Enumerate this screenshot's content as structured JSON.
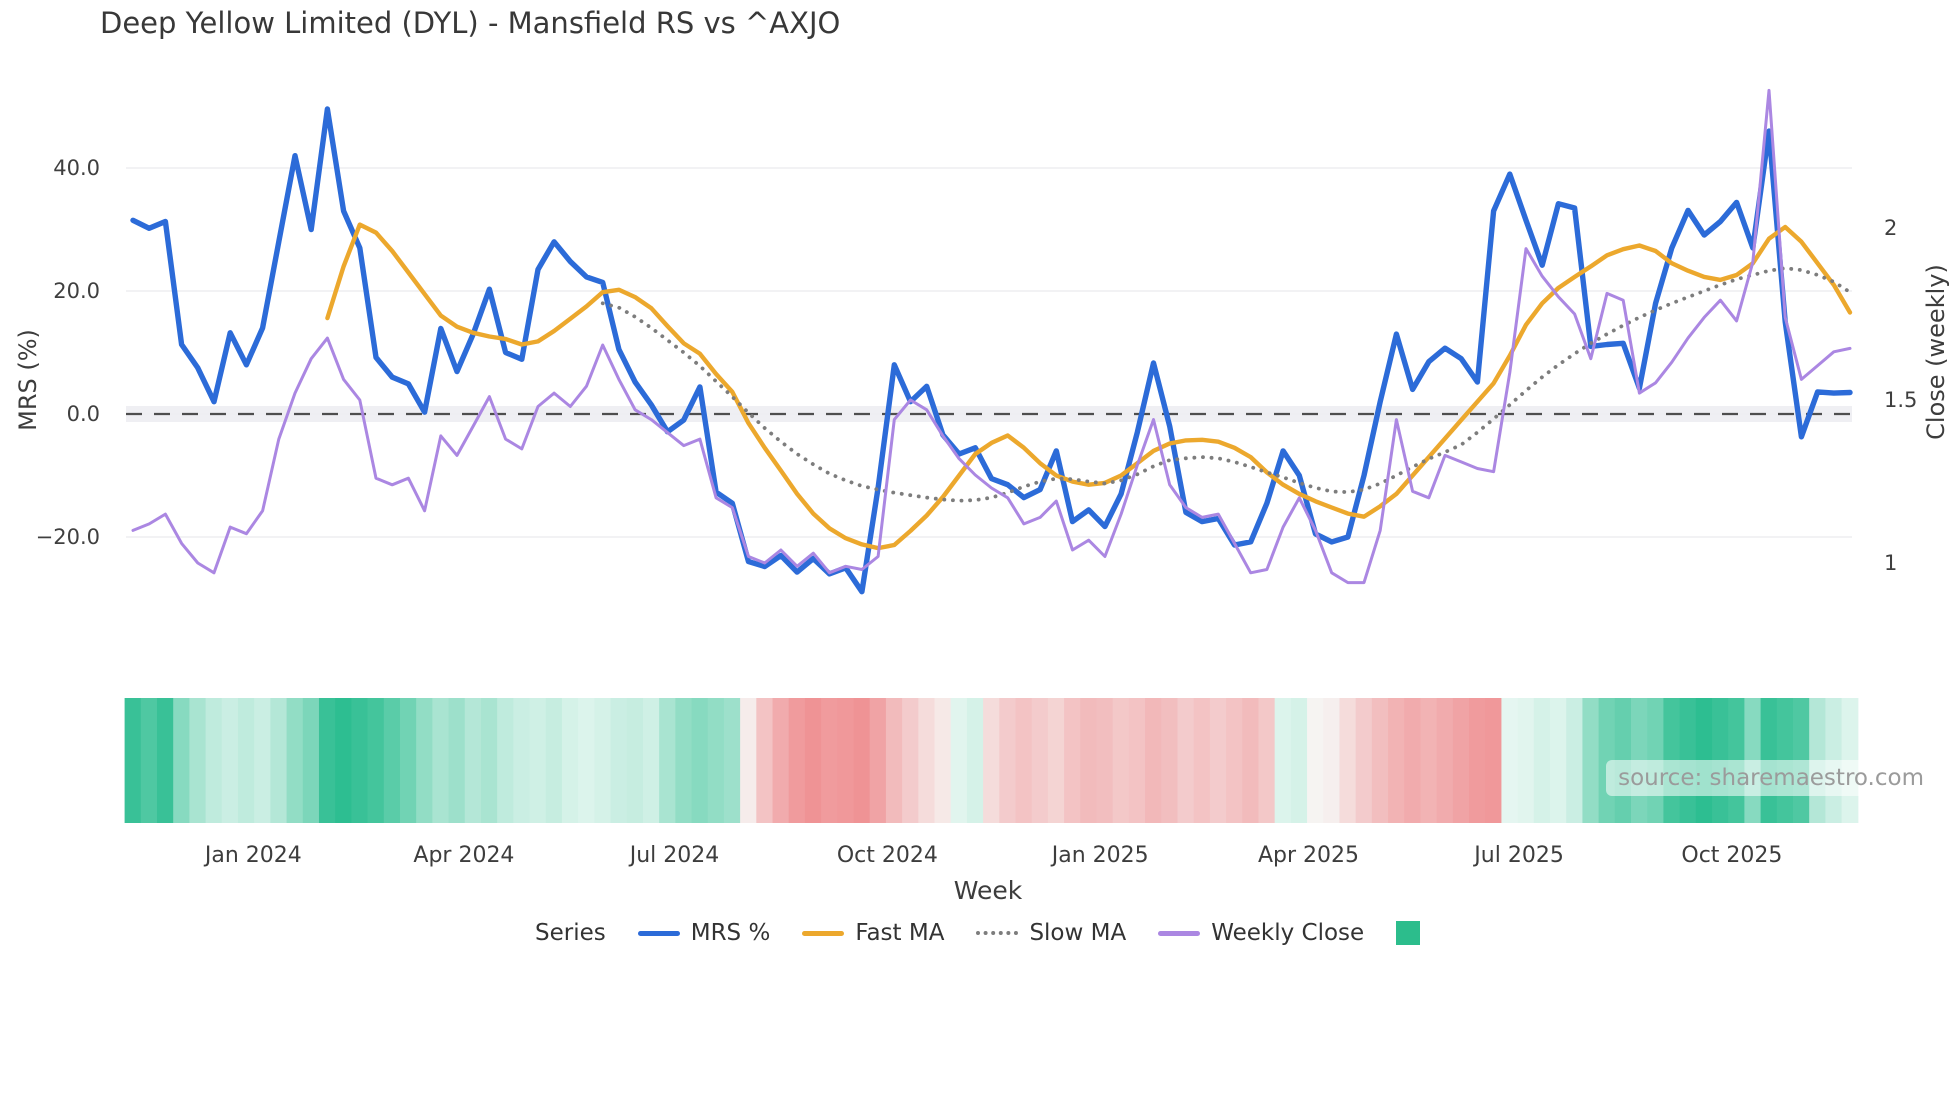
{
  "title": "Deep Yellow Limited (DYL) - Mansfield RS vs ^AXJO",
  "source_note": "source: sharemaestro.com",
  "axes": {
    "left": {
      "title": "MRS (%)",
      "ticks": [
        {
          "label": "40.0",
          "value": 40
        },
        {
          "label": "20.0",
          "value": 20
        },
        {
          "label": "0.0",
          "value": 0
        },
        {
          "label": "−20.0",
          "value": -20
        }
      ]
    },
    "right": {
      "title": "Close (weekly)",
      "ticks": [
        {
          "label": "2",
          "value": 2
        },
        {
          "label": "1.5",
          "value": 1.5
        },
        {
          "label": "1",
          "value": 1
        }
      ]
    },
    "x": {
      "title": "Week",
      "ticks": [
        {
          "label": "Jan 2024",
          "week": 7.43
        },
        {
          "label": "Apr 2024",
          "week": 20.43
        },
        {
          "label": "Jul 2024",
          "week": 33.43
        },
        {
          "label": "Oct 2024",
          "week": 46.57
        },
        {
          "label": "Jan 2025",
          "week": 59.71
        },
        {
          "label": "Apr 2025",
          "week": 72.57
        },
        {
          "label": "Jul 2025",
          "week": 85.57
        },
        {
          "label": "Oct 2025",
          "week": 98.71
        }
      ]
    }
  },
  "legend": {
    "title": "Series",
    "items": [
      {
        "label": "MRS %",
        "type": "line",
        "color": "#2c6bd8"
      },
      {
        "label": "Fast MA",
        "type": "line",
        "color": "#eca82d"
      },
      {
        "label": "Slow MA",
        "type": "dotted",
        "color": "#7d7d7d"
      },
      {
        "label": "Weekly Close",
        "type": "line",
        "color": "#ab87e2"
      },
      {
        "label": "",
        "type": "square",
        "color": "#2cbd8c"
      }
    ]
  },
  "chart_data": {
    "type": "line",
    "title": "Deep Yellow Limited (DYL) - Mansfield RS vs ^AXJO",
    "xlabel": "Week",
    "ylabel_left": "MRS (%)",
    "ylabel_right": "Close (weekly)",
    "ylim_left": [
      -31,
      56
    ],
    "ylim_right": [
      0.92,
      2.45
    ],
    "grid": true,
    "zero_line": true,
    "legend_position": "bottom",
    "x": [
      "2023-11-10",
      "2023-11-17",
      "2023-11-24",
      "2023-12-01",
      "2023-12-08",
      "2023-12-15",
      "2023-12-22",
      "2023-12-29",
      "2024-01-05",
      "2024-01-12",
      "2024-01-19",
      "2024-01-26",
      "2024-02-02",
      "2024-02-09",
      "2024-02-16",
      "2024-02-23",
      "2024-03-01",
      "2024-03-08",
      "2024-03-15",
      "2024-03-22",
      "2024-03-29",
      "2024-04-05",
      "2024-04-12",
      "2024-04-19",
      "2024-04-26",
      "2024-05-03",
      "2024-05-10",
      "2024-05-17",
      "2024-05-24",
      "2024-05-31",
      "2024-06-07",
      "2024-06-14",
      "2024-06-21",
      "2024-06-28",
      "2024-07-05",
      "2024-07-12",
      "2024-07-19",
      "2024-07-26",
      "2024-08-02",
      "2024-08-09",
      "2024-08-16",
      "2024-08-23",
      "2024-08-30",
      "2024-09-06",
      "2024-09-13",
      "2024-09-20",
      "2024-09-27",
      "2024-10-04",
      "2024-10-11",
      "2024-10-18",
      "2024-10-25",
      "2024-11-01",
      "2024-11-08",
      "2024-11-15",
      "2024-11-22",
      "2024-11-29",
      "2024-12-06",
      "2024-12-13",
      "2024-12-20",
      "2024-12-27",
      "2025-01-03",
      "2025-01-10",
      "2025-01-17",
      "2025-01-24",
      "2025-01-31",
      "2025-02-07",
      "2025-02-14",
      "2025-02-21",
      "2025-02-28",
      "2025-03-07",
      "2025-03-14",
      "2025-03-21",
      "2025-03-28",
      "2025-04-04",
      "2025-04-11",
      "2025-04-18",
      "2025-04-25",
      "2025-05-02",
      "2025-05-09",
      "2025-05-16",
      "2025-05-23",
      "2025-05-30",
      "2025-06-06",
      "2025-06-13",
      "2025-06-20",
      "2025-06-27",
      "2025-07-04",
      "2025-07-11",
      "2025-07-18",
      "2025-07-25",
      "2025-08-01",
      "2025-08-08",
      "2025-08-15",
      "2025-08-22",
      "2025-08-29",
      "2025-09-05",
      "2025-09-12",
      "2025-09-19",
      "2025-09-26",
      "2025-10-03",
      "2025-10-10",
      "2025-10-17",
      "2025-10-24",
      "2025-10-31",
      "2025-11-07",
      "2025-11-14",
      "2025-11-21"
    ],
    "series": [
      {
        "name": "MRS %",
        "axis": "left",
        "style": "solid",
        "color": "#2c6bd8",
        "width": 5.4,
        "values": [
          31.5,
          30.2,
          31.3,
          11.3,
          7.5,
          2.0,
          13.2,
          8.0,
          14.0,
          28.0,
          42.0,
          30.0,
          49.6,
          33.0,
          27.0,
          9.2,
          6.0,
          4.9,
          0.3,
          13.9,
          6.9,
          13.0,
          20.3,
          10.0,
          8.9,
          23.5,
          28.0,
          24.8,
          22.3,
          21.4,
          10.5,
          5.2,
          1.5,
          -2.9,
          -1.0,
          4.4,
          -12.7,
          -14.5,
          -24.0,
          -24.8,
          -23.0,
          -25.7,
          -23.5,
          -26.0,
          -25.0,
          -28.9,
          -12.0,
          8.0,
          2.0,
          4.5,
          -3.4,
          -6.5,
          -5.5,
          -10.5,
          -11.5,
          -13.6,
          -12.3,
          -6.0,
          -17.5,
          -15.6,
          -18.3,
          -13.0,
          -3.0,
          8.3,
          -2.0,
          -16.0,
          -17.5,
          -17.0,
          -21.3,
          -20.8,
          -14.5,
          -6.0,
          -10.0,
          -19.5,
          -20.8,
          -20.0,
          -10.0,
          2.0,
          13.0,
          4.0,
          8.5,
          10.7,
          9.0,
          5.2,
          33.0,
          39.0,
          31.5,
          24.2,
          34.2,
          33.5,
          11.0,
          11.3,
          11.5,
          4.2,
          18.0,
          27.0,
          33.1,
          29.1,
          31.3,
          34.4,
          27.0,
          46.0,
          15.0,
          -3.7,
          3.6,
          3.4,
          3.5
        ]
      },
      {
        "name": "Fast MA",
        "axis": "left",
        "style": "solid",
        "color": "#eca82d",
        "width": 4.4,
        "values": [
          null,
          null,
          null,
          null,
          null,
          null,
          null,
          null,
          null,
          null,
          null,
          null,
          15.6,
          24.0,
          30.8,
          29.5,
          26.5,
          23.0,
          19.5,
          16.0,
          14.2,
          13.2,
          12.6,
          12.2,
          11.3,
          11.8,
          13.5,
          15.5,
          17.5,
          19.8,
          20.2,
          19.0,
          17.2,
          14.3,
          11.5,
          9.8,
          6.5,
          3.6,
          -1.5,
          -5.5,
          -9.2,
          -13.0,
          -16.2,
          -18.6,
          -20.2,
          -21.2,
          -21.8,
          -21.3,
          -19.0,
          -16.5,
          -13.5,
          -10.0,
          -6.5,
          -4.7,
          -3.5,
          -5.5,
          -8.0,
          -10.0,
          -11.0,
          -11.5,
          -11.2,
          -10.0,
          -8.0,
          -6.0,
          -4.8,
          -4.3,
          -4.2,
          -4.5,
          -5.5,
          -7.0,
          -9.5,
          -11.5,
          -13.0,
          -14.2,
          -15.2,
          -16.2,
          -16.7,
          -15.0,
          -13.0,
          -10.0,
          -7.0,
          -4.0,
          -1.0,
          2.0,
          5.0,
          9.5,
          14.5,
          18.0,
          20.5,
          22.3,
          24.0,
          25.8,
          26.8,
          27.4,
          26.5,
          24.5,
          23.3,
          22.3,
          21.8,
          22.6,
          24.5,
          28.5,
          30.4,
          28.0,
          24.5,
          21.0,
          16.5
        ]
      },
      {
        "name": "Slow MA",
        "axis": "left",
        "style": "dotted",
        "color": "#7d7d7d",
        "width": 3.8,
        "values": [
          null,
          null,
          null,
          null,
          null,
          null,
          null,
          null,
          null,
          null,
          null,
          null,
          null,
          null,
          null,
          null,
          null,
          null,
          null,
          null,
          null,
          null,
          null,
          null,
          null,
          null,
          null,
          null,
          null,
          18.0,
          17.3,
          15.8,
          14.0,
          12.0,
          10.0,
          7.8,
          5.3,
          2.8,
          0.2,
          -2.3,
          -4.5,
          -6.5,
          -8.2,
          -9.7,
          -10.8,
          -11.7,
          -12.3,
          -12.8,
          -13.2,
          -13.6,
          -13.9,
          -14.1,
          -14.0,
          -13.6,
          -12.8,
          -11.8,
          -11.0,
          -10.5,
          -10.6,
          -11.0,
          -11.3,
          -10.8,
          -9.8,
          -8.5,
          -7.5,
          -7.2,
          -7.0,
          -7.2,
          -7.8,
          -8.6,
          -9.5,
          -10.3,
          -11.2,
          -12.0,
          -12.6,
          -12.7,
          -12.3,
          -11.3,
          -10.0,
          -8.6,
          -7.3,
          -6.2,
          -5.0,
          -3.0,
          -0.8,
          1.5,
          3.8,
          6.0,
          8.0,
          9.8,
          11.5,
          13.0,
          14.4,
          15.7,
          16.9,
          18.0,
          19.0,
          20.0,
          21.0,
          21.9,
          22.6,
          23.3,
          23.7,
          23.4,
          22.6,
          21.5,
          19.8
        ]
      },
      {
        "name": "Weekly Close",
        "axis": "right",
        "style": "solid",
        "color": "#ab87e2",
        "width": 3.0,
        "values": [
          1.1,
          1.12,
          1.15,
          1.06,
          1.0,
          0.97,
          1.11,
          1.09,
          1.16,
          1.38,
          1.52,
          1.62,
          1.68,
          1.56,
          1.5,
          1.26,
          1.24,
          1.26,
          1.16,
          1.39,
          1.33,
          1.42,
          1.51,
          1.38,
          1.35,
          1.48,
          1.52,
          1.48,
          1.54,
          1.66,
          1.56,
          1.47,
          1.44,
          1.4,
          1.36,
          1.38,
          1.2,
          1.17,
          1.02,
          1.0,
          1.04,
          0.99,
          1.03,
          0.97,
          0.99,
          0.98,
          1.02,
          1.44,
          1.5,
          1.47,
          1.39,
          1.32,
          1.27,
          1.23,
          1.2,
          1.12,
          1.14,
          1.19,
          1.04,
          1.07,
          1.02,
          1.15,
          1.3,
          1.44,
          1.24,
          1.17,
          1.14,
          1.15,
          1.06,
          0.97,
          0.98,
          1.11,
          1.2,
          1.1,
          0.97,
          0.94,
          0.94,
          1.1,
          1.44,
          1.22,
          1.2,
          1.33,
          1.31,
          1.29,
          1.28,
          1.58,
          1.94,
          1.86,
          1.8,
          1.75,
          1.62,
          1.81,
          1.79,
          1.52,
          1.55,
          1.61,
          1.68,
          1.74,
          1.79,
          1.73,
          1.9,
          2.4,
          1.74,
          1.56,
          1.6,
          1.64,
          1.65
        ]
      }
    ],
    "heatmap": {
      "description": "weekly sentiment strip under chart, green=positive red=negative",
      "color_positive": "#17b785",
      "color_negative": "#eb5a5f",
      "color_neutral": "#f7fcfa",
      "values": [
        0.85,
        0.75,
        0.85,
        0.5,
        0.35,
        0.25,
        0.2,
        0.25,
        0.2,
        0.3,
        0.45,
        0.55,
        0.85,
        0.9,
        0.85,
        0.8,
        0.7,
        0.6,
        0.45,
        0.35,
        0.4,
        0.3,
        0.35,
        0.25,
        0.2,
        0.18,
        0.22,
        0.15,
        0.12,
        0.15,
        0.2,
        0.22,
        0.18,
        0.35,
        0.45,
        0.5,
        0.45,
        0.4,
        -0.1,
        -0.35,
        -0.5,
        -0.6,
        -0.65,
        -0.6,
        -0.62,
        -0.65,
        -0.55,
        -0.4,
        -0.3,
        -0.2,
        -0.12,
        0.1,
        0.15,
        -0.2,
        -0.3,
        -0.35,
        -0.3,
        -0.25,
        -0.35,
        -0.4,
        -0.38,
        -0.32,
        -0.35,
        -0.42,
        -0.38,
        -0.3,
        -0.35,
        -0.3,
        -0.35,
        -0.4,
        -0.32,
        0.12,
        0.15,
        -0.05,
        -0.08,
        -0.2,
        -0.3,
        -0.38,
        -0.45,
        -0.5,
        -0.45,
        -0.5,
        -0.55,
        -0.6,
        -0.62,
        0.08,
        0.1,
        0.15,
        0.12,
        0.2,
        0.45,
        0.6,
        0.65,
        0.55,
        0.6,
        0.8,
        0.85,
        0.9,
        0.85,
        0.8,
        0.5,
        0.85,
        0.8,
        0.75,
        0.3,
        0.2,
        0.12
      ]
    },
    "colors": {
      "grid": "#ededf1",
      "zero_band": "#efeff3",
      "zero_line": "#4e4e4e",
      "tick_text": "#3f3f3f"
    }
  }
}
